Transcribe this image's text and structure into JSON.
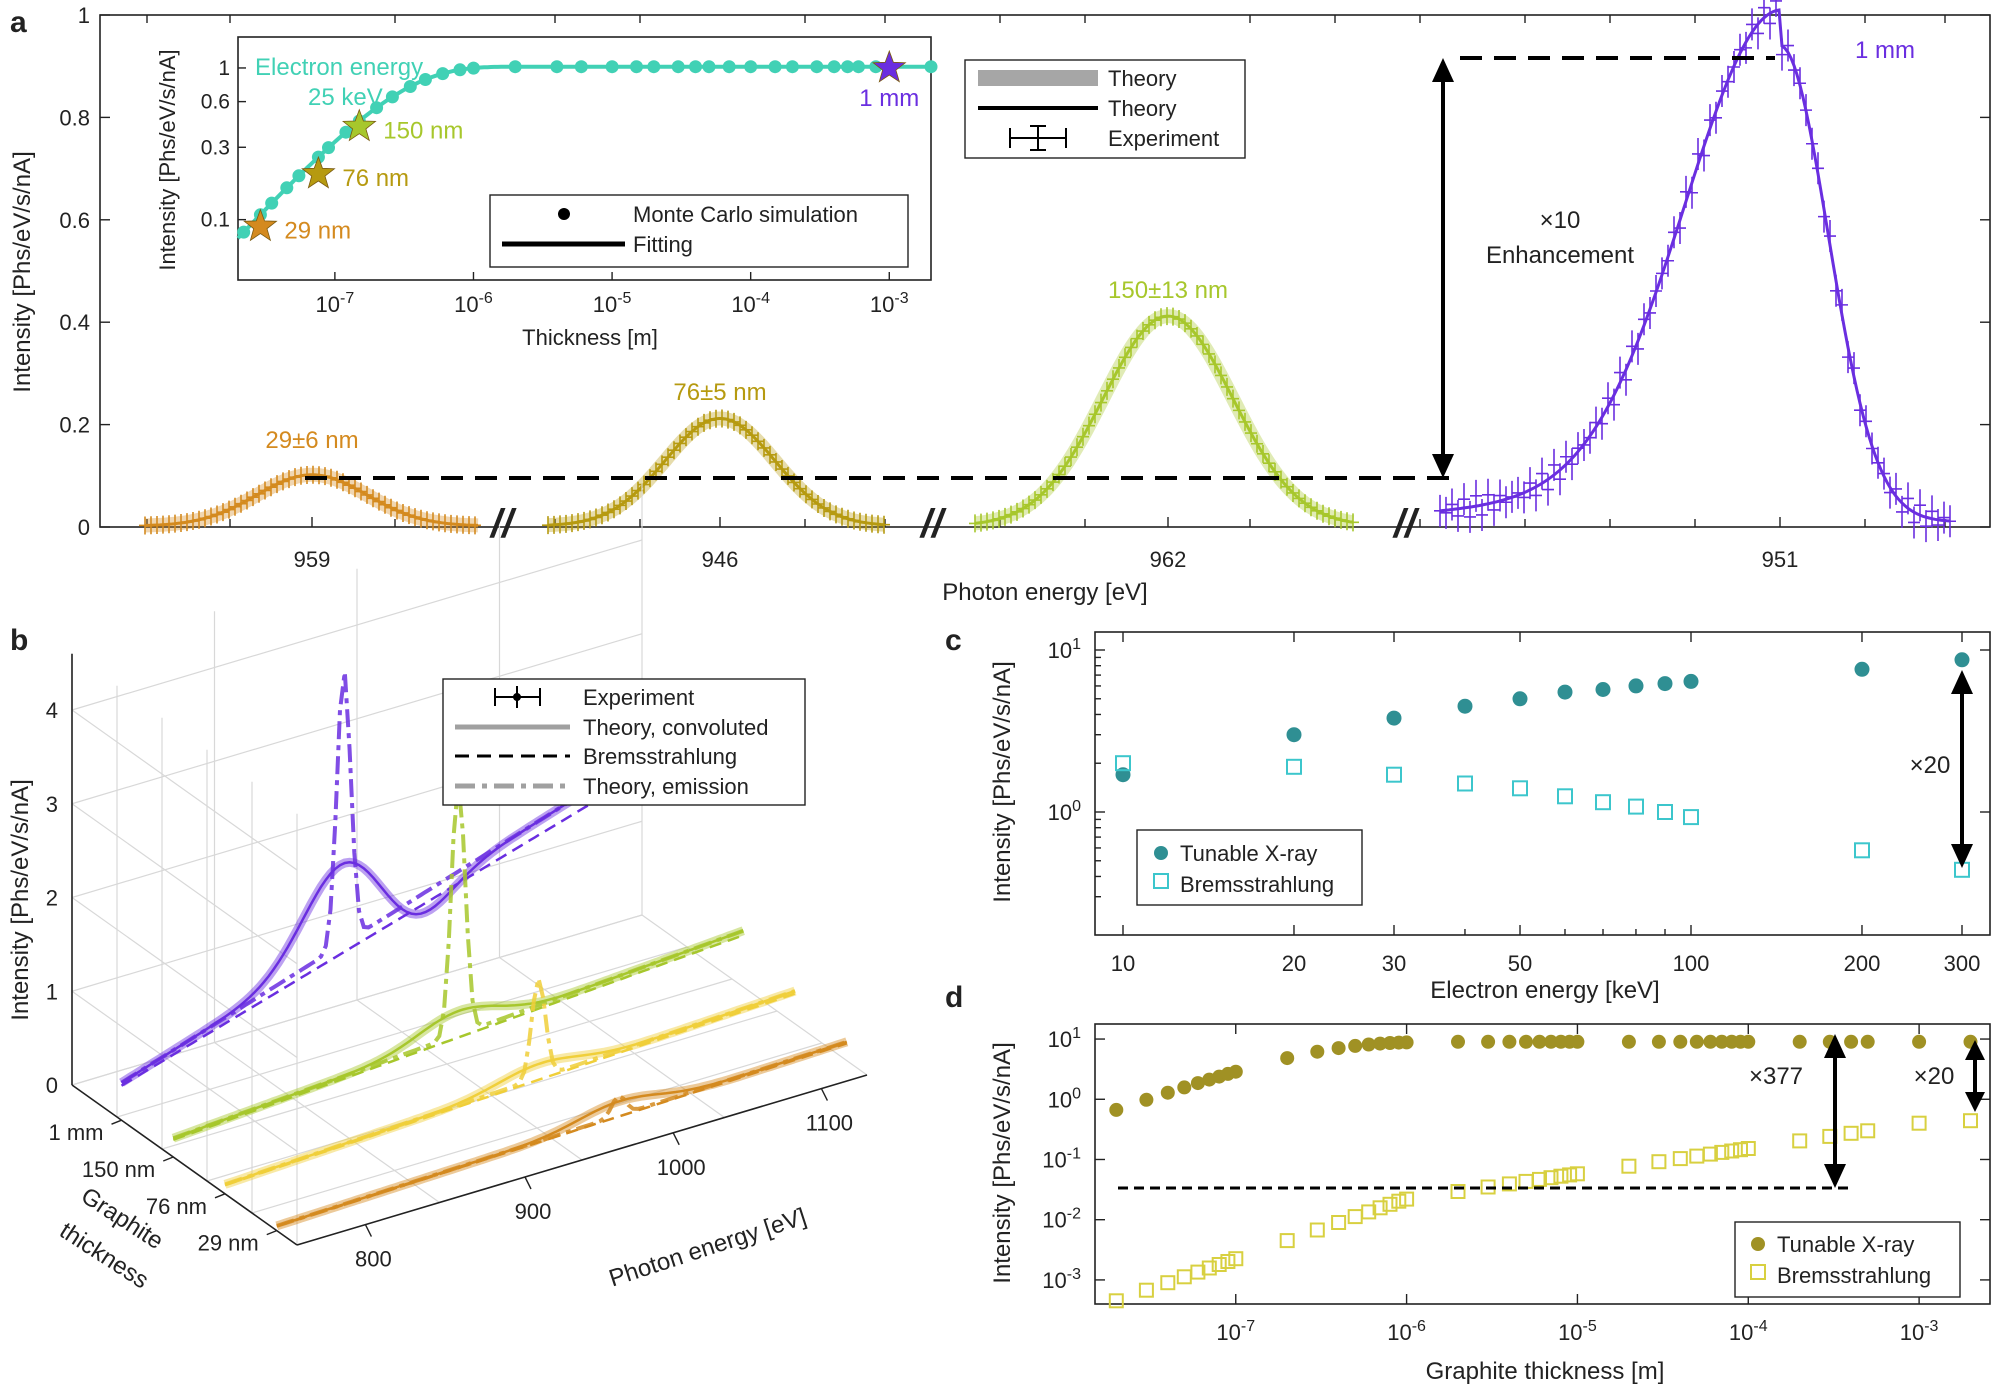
{
  "colors": {
    "purple": "#6a2ee0",
    "lime": "#a7c72c",
    "olive": "#b69a10",
    "orange": "#d48a1f",
    "teal": "#41d1b5",
    "darkteal": "#2f8f93",
    "cyan": "#3cc6cc",
    "gold": "#a09124",
    "yellowsq": "#d8d040",
    "yellow": "#f0cf3a"
  },
  "panel_labels": {
    "a": "a",
    "b": "b",
    "c": "c",
    "d": "d"
  },
  "chart_data": [
    {
      "id": "a",
      "type": "line",
      "title": "",
      "xlabel": "Photon energy [eV]",
      "ylabel": "Intensity [Phs/eV/s/nA]",
      "ylim": [
        0,
        1
      ],
      "yticks": [
        "0",
        "0.2",
        "0.4",
        "0.6",
        "0.8",
        "1"
      ],
      "xticks": [
        "959",
        "946",
        "962",
        "951"
      ],
      "break_mark": "//",
      "peaks": [
        {
          "name": "29 nm",
          "label": "29±6 nm",
          "center": 959,
          "amplitude": 0.1,
          "color": "orange"
        },
        {
          "name": "76 nm",
          "label": "76±5 nm",
          "center": 946,
          "amplitude": 0.21,
          "color": "olive"
        },
        {
          "name": "150 nm",
          "label": "150±13 nm",
          "center": 962,
          "amplitude": 0.41,
          "color": "lime"
        },
        {
          "name": "1 mm",
          "label": "1 mm",
          "center": 951,
          "amplitude": 0.93,
          "color": "purple"
        }
      ],
      "annotation": {
        "line1": "×10",
        "line2": "Enhancement",
        "from": 0.095,
        "to": 0.93
      },
      "legend": [
        "Theory",
        "Theory",
        "Experiment"
      ],
      "inset": {
        "xlabel": "Thickness [m]",
        "ylabel": "Intensity [Phs/eV/s/nA]",
        "xscale": "log",
        "xlim": [
          2e-08,
          0.002
        ],
        "yticks": [
          "0.1",
          "0.3",
          "0.6",
          "1"
        ],
        "xticks": [
          "10",
          "10",
          "10",
          "10",
          "10"
        ],
        "xtick_exponents": [
          "-7",
          "-6",
          "-5",
          "-4",
          "-3"
        ],
        "title_line1": "Electron energy",
        "title_line2": "25 keV",
        "stars": [
          {
            "label": "29 nm",
            "thickness": 2.9e-08,
            "intensity": 0.09,
            "color": "orange"
          },
          {
            "label": "76 nm",
            "thickness": 7.6e-08,
            "intensity": 0.2,
            "color": "olive"
          },
          {
            "label": "150 nm",
            "thickness": 1.5e-07,
            "intensity": 0.41,
            "color": "lime"
          },
          {
            "label": "1 mm",
            "thickness": 0.001,
            "intensity": 1.0,
            "color": "purple"
          }
        ],
        "legend": [
          "Monte Carlo simulation",
          "Fitting"
        ]
      }
    },
    {
      "id": "b",
      "type": "line",
      "title": "",
      "xlabel": "Photon energy [eV]",
      "ylabel": "Intensity [Phs/eV/s/nA]",
      "zlabel_line1": "Graphite",
      "zlabel_line2": "thickness",
      "ylim": [
        0,
        4
      ],
      "yticks": [
        "0",
        "1",
        "2",
        "3",
        "4"
      ],
      "xticks": [
        "800",
        "900",
        "1000",
        "1100"
      ],
      "depth_ticks": [
        "1 mm",
        "150 nm",
        "76 nm",
        "29 nm"
      ],
      "series": [
        {
          "name": "1 mm",
          "color": "purple",
          "baseline_low": 0.4,
          "baseline_high": 2.4,
          "peak": 4.1
        },
        {
          "name": "150 nm",
          "color": "lime",
          "baseline_low": 0.2,
          "baseline_high": 0.6,
          "peak": 3.1
        },
        {
          "name": "76 nm",
          "color": "yellow",
          "baseline_low": 0.1,
          "baseline_high": 0.35,
          "peak": 1.3
        },
        {
          "name": "29 nm",
          "color": "orange",
          "baseline_low": 0.05,
          "baseline_high": 0.2,
          "peak": 0.35
        }
      ],
      "legend": [
        "Experiment",
        "Theory, convoluted",
        "Bremsstrahlung",
        "Theory, emission"
      ]
    },
    {
      "id": "c",
      "type": "scatter",
      "title": "",
      "xlabel": "Electron energy [keV]",
      "ylabel": "Intensity [Phs/eV/s/nA]",
      "xscale": "log",
      "yscale": "log",
      "xticks": [
        "10",
        "20",
        "30",
        "50",
        "100",
        "200",
        "300"
      ],
      "ytick_base": [
        "10",
        "10"
      ],
      "ytick_exponents": [
        "0",
        "1"
      ],
      "x": [
        10,
        20,
        30,
        40,
        50,
        60,
        70,
        80,
        90,
        100,
        200,
        300
      ],
      "series": [
        {
          "name": "Tunable X-ray",
          "values": [
            1.7,
            3.0,
            3.8,
            4.5,
            5.0,
            5.5,
            5.7,
            6.0,
            6.2,
            6.4,
            7.6,
            8.7
          ]
        },
        {
          "name": "Bremsstrahlung",
          "values": [
            2.0,
            1.9,
            1.7,
            1.5,
            1.4,
            1.25,
            1.15,
            1.08,
            1.0,
            0.93,
            0.58,
            0.44
          ]
        }
      ],
      "annotation": "×20"
    },
    {
      "id": "d",
      "type": "scatter",
      "title": "",
      "xlabel": "Graphite thickness [m]",
      "ylabel": "Intensity [Phs/eV/s/nA]",
      "xscale": "log",
      "yscale": "log",
      "xticks": [
        "10",
        "10",
        "10",
        "10",
        "10"
      ],
      "xtick_exponents": [
        "-7",
        "-6",
        "-5",
        "-4",
        "-3"
      ],
      "ytick_base": [
        "10",
        "10",
        "10",
        "10",
        "10"
      ],
      "ytick_exponents": [
        "-3",
        "-2",
        "-1",
        "0",
        "1"
      ],
      "series": [
        {
          "name": "Tunable X-ray"
        },
        {
          "name": "Bremsstrahlung"
        }
      ],
      "annotations": [
        "×377",
        "×20"
      ]
    }
  ]
}
